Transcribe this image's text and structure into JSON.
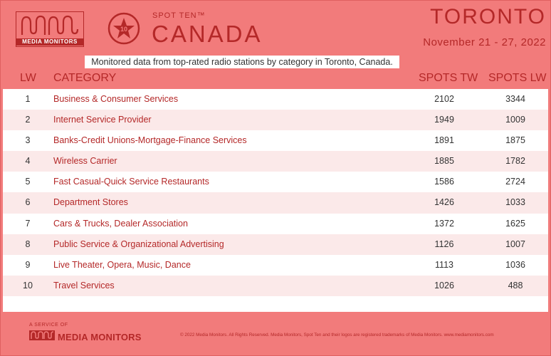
{
  "brand": {
    "logo_text": "MEDIA MONITORS",
    "spot_ten": "SPOT TEN™",
    "seal_number": "10",
    "country": "CANADA"
  },
  "report": {
    "city": "TORONTO",
    "dates": "November 21 - 27, 2022",
    "subtitle": "Monitored data from top-rated radio stations by category in Toronto, Canada."
  },
  "table": {
    "headers": {
      "rank": "LW",
      "category": "CATEGORY",
      "spots_tw": "SPOTS TW",
      "spots_lw": "SPOTS LW"
    },
    "rows": [
      {
        "rank": "1",
        "category": "Business & Consumer Services",
        "spots_tw": "2102",
        "spots_lw": "3344"
      },
      {
        "rank": "2",
        "category": "Internet Service Provider",
        "spots_tw": "1949",
        "spots_lw": "1009"
      },
      {
        "rank": "3",
        "category": "Banks-Credit Unions-Mortgage-Finance Services",
        "spots_tw": "1891",
        "spots_lw": "1875"
      },
      {
        "rank": "4",
        "category": "Wireless Carrier",
        "spots_tw": "1885",
        "spots_lw": "1782"
      },
      {
        "rank": "5",
        "category": "Fast Casual-Quick Service Restaurants",
        "spots_tw": "1586",
        "spots_lw": "2724"
      },
      {
        "rank": "6",
        "category": "Department Stores",
        "spots_tw": "1426",
        "spots_lw": "1033"
      },
      {
        "rank": "7",
        "category": "Cars & Trucks, Dealer Association",
        "spots_tw": "1372",
        "spots_lw": "1625"
      },
      {
        "rank": "8",
        "category": "Public Service & Organizational Advertising",
        "spots_tw": "1126",
        "spots_lw": "1007"
      },
      {
        "rank": "9",
        "category": "Live Theater, Opera, Music, Dance",
        "spots_tw": "1113",
        "spots_lw": "1036"
      },
      {
        "rank": "10",
        "category": "Travel Services",
        "spots_tw": "1026",
        "spots_lw": "488"
      }
    ]
  },
  "footer": {
    "service_of": "A SERVICE OF",
    "brand": "MEDIA MONITORS",
    "copyright": "© 2022 Media Monitors. All Rights Reserved. Media Monitors, Spot Ten and their logos are registered trademarks of Media Monitors. www.mediamonitors.com"
  },
  "colors": {
    "background": "#f27b7b",
    "accent": "#b42828",
    "row_alt": "#fbe9e9"
  }
}
